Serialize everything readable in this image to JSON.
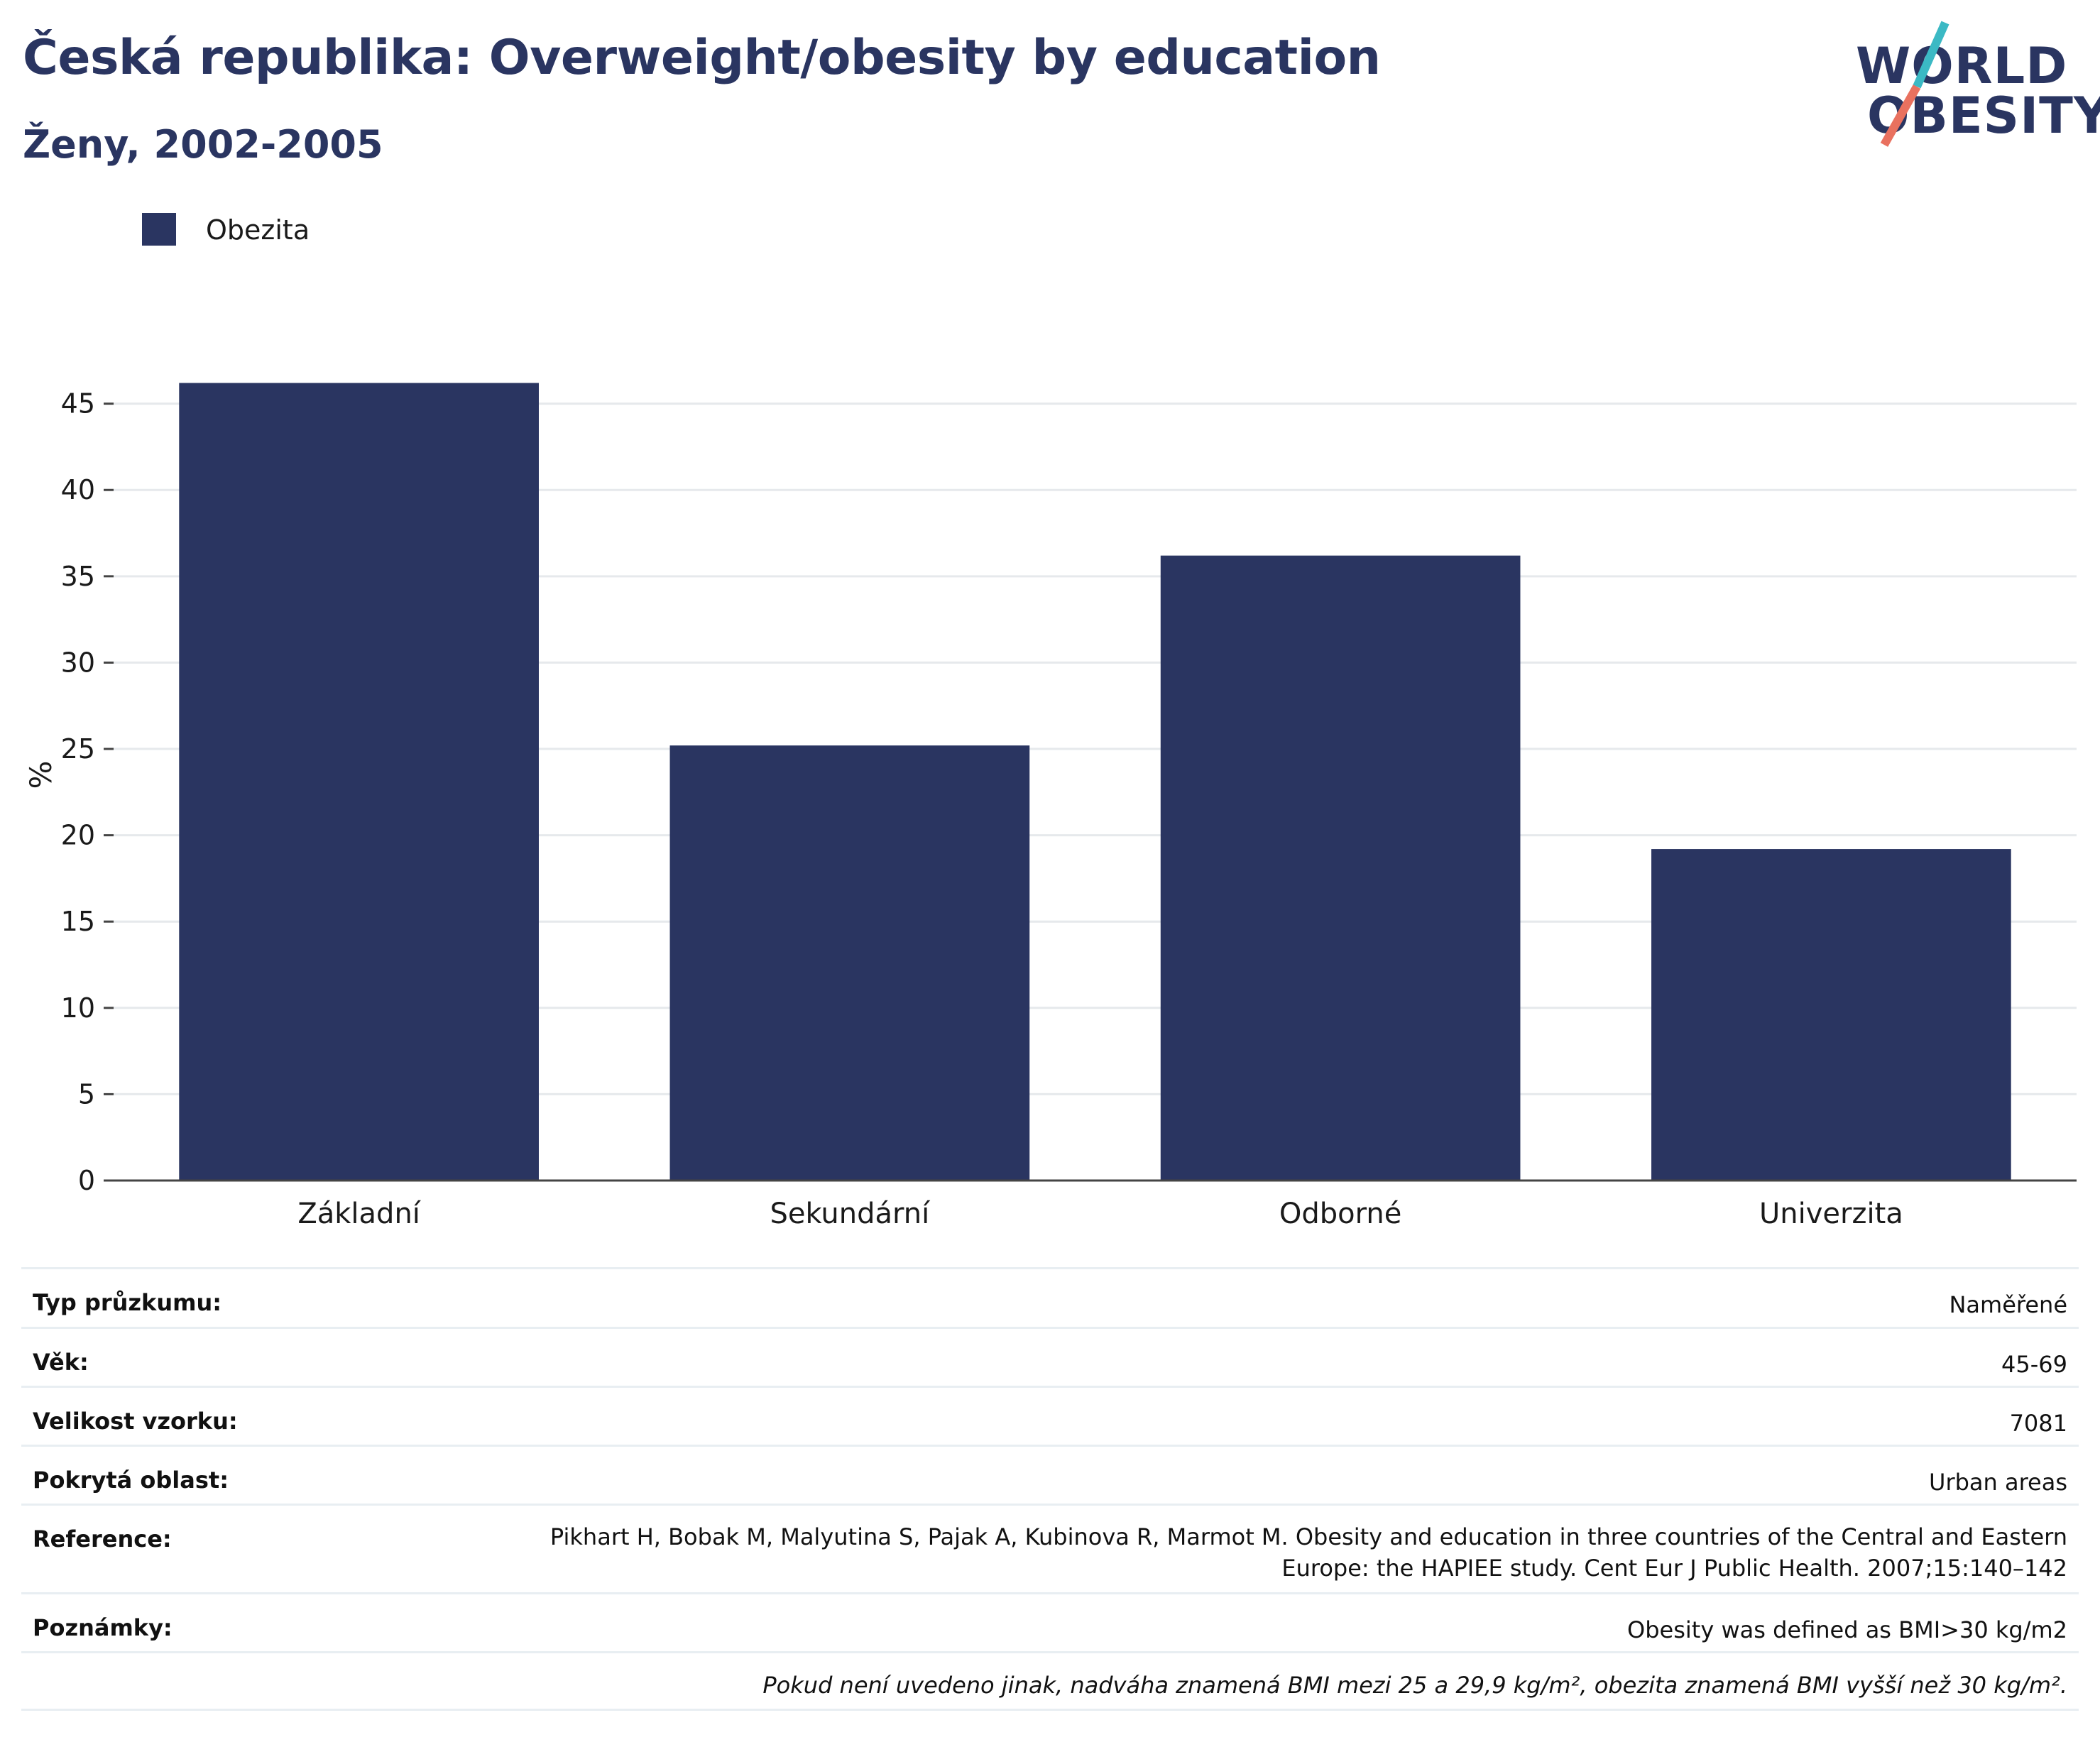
{
  "header": {
    "title": "Česká republika: Overweight/obesity by education",
    "subtitle": "Ženy, 2002-2005"
  },
  "logo": {
    "line1": "WORLD",
    "line2": "OBESITY",
    "colors": {
      "text": "#2a3561",
      "slash_top": "#3bb9c4",
      "slash_bottom": "#e9715f"
    }
  },
  "legend": {
    "items": [
      {
        "label": "Obezita",
        "color": "#2a3561"
      }
    ]
  },
  "chart_data": {
    "type": "bar",
    "categories": [
      "Základní",
      "Sekundární",
      "Odborné",
      "Univerzita"
    ],
    "series": [
      {
        "name": "Obezita",
        "values": [
          46.2,
          25.2,
          36.2,
          19.2
        ],
        "color": "#2a3561"
      }
    ],
    "ylabel": "%",
    "xlabel": "",
    "ylim": [
      0,
      47
    ],
    "yticks": [
      0,
      5,
      10,
      15,
      20,
      25,
      30,
      35,
      40,
      45
    ],
    "grid": true,
    "legend_position": "top-left"
  },
  "meta": {
    "rows": [
      {
        "label": "Typ průzkumu:",
        "value": "Naměřené"
      },
      {
        "label": "Věk:",
        "value": "45-69"
      },
      {
        "label": "Velikost vzorku:",
        "value": "7081"
      },
      {
        "label": "Pokrytá oblast:",
        "value": "Urban areas"
      },
      {
        "label": "Reference:",
        "value": "Pikhart H, Bobak M, Malyutina S, Pajak A, Kubinova R, Marmot M. Obesity and education in three countries of the Central and Eastern Europe: the HAPIEE study. Cent Eur J Public Health. 2007;15:140–142"
      },
      {
        "label": "Poznámky:",
        "value": "Obesity was defined as BMI>30 kg/m2"
      }
    ],
    "footnote": "Pokud není uvedeno jinak, nadváha znamená BMI mezi 25 a 29,9 kg/m², obezita znamená BMI vyšší než 30 kg/m²."
  }
}
